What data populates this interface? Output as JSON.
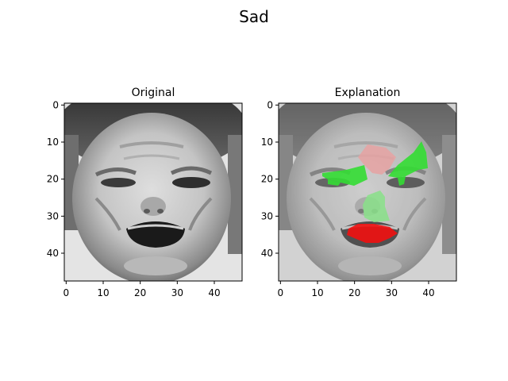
{
  "figure": {
    "title": "Sad"
  },
  "chart_data": [
    {
      "type": "heatmap",
      "title": "Original",
      "content": "grayscale face image",
      "xlim": [
        -0.5,
        47.5
      ],
      "ylim": [
        47.5,
        -0.5
      ],
      "xticks": [
        0,
        10,
        20,
        30,
        40
      ],
      "yticks": [
        0,
        10,
        20,
        30,
        40
      ],
      "grid": false
    },
    {
      "type": "heatmap",
      "title": "Explanation",
      "content": "grayscale face image with LIME superpixel overlay",
      "xlim": [
        -0.5,
        47.5
      ],
      "ylim": [
        47.5,
        -0.5
      ],
      "xticks": [
        0,
        10,
        20,
        30,
        40
      ],
      "yticks": [
        0,
        10,
        20,
        30,
        40
      ],
      "grid": false,
      "overlay_colors": {
        "positive": "#33dd33",
        "negative": "#ee1111",
        "weak_positive": "#88e088",
        "weak_negative": "#e8a0a0"
      }
    }
  ]
}
